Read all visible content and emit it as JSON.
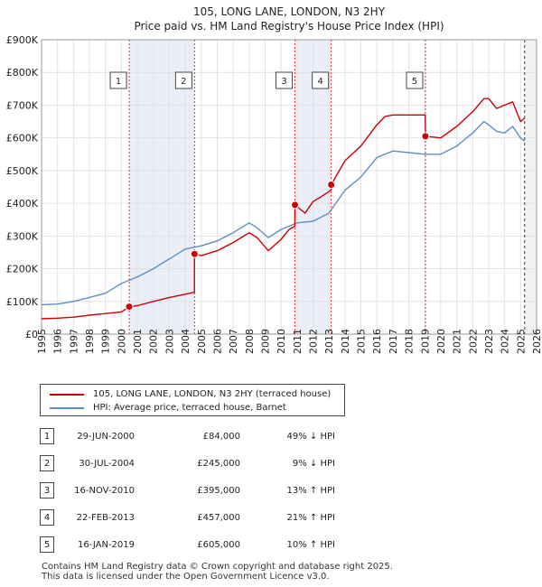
{
  "chart_data": {
    "type": "line",
    "title": "105, LONG LANE, LONDON, N3 2HY",
    "subtitle": "Price paid vs. HM Land Registry's House Price Index (HPI)",
    "xlabel": "",
    "ylabel": "",
    "xlim": [
      1995,
      2026
    ],
    "ylim": [
      0,
      900000
    ],
    "y_ticks": [
      0,
      100000,
      200000,
      300000,
      400000,
      500000,
      600000,
      700000,
      800000,
      900000
    ],
    "y_tick_labels": [
      "£0",
      "£100K",
      "£200K",
      "£300K",
      "£400K",
      "£500K",
      "£600K",
      "£700K",
      "£800K",
      "£900K"
    ],
    "x_ticks": [
      1995,
      1996,
      1997,
      1998,
      1999,
      2000,
      2001,
      2002,
      2003,
      2004,
      2005,
      2006,
      2007,
      2008,
      2009,
      2010,
      2011,
      2012,
      2013,
      2014,
      2015,
      2016,
      2017,
      2018,
      2019,
      2020,
      2021,
      2022,
      2023,
      2024,
      2025,
      2026
    ],
    "x_tick_labels": [
      "1995",
      "1996",
      "1997",
      "1998",
      "1999",
      "2000",
      "2001",
      "2002",
      "2003",
      "2004",
      "2005",
      "2006",
      "2007",
      "2008",
      "2009",
      "2010",
      "2011",
      "2012",
      "2013",
      "2014",
      "2015",
      "2016",
      "2017",
      "2018",
      "2019",
      "2020",
      "2021",
      "2022",
      "2023",
      "2024",
      "2025",
      "2026"
    ],
    "grid": true,
    "legend_position": "below",
    "data_end": 2025.25,
    "shaded_periods": [
      [
        2000.49,
        2004.58
      ],
      [
        2010.87,
        2013.14
      ]
    ],
    "series": [
      {
        "name": "105, LONG LANE, LONDON, N3 2HY (terraced house)",
        "color": "#cc0000",
        "x": [
          1995.0,
          1996.0,
          1997.0,
          1998.0,
          1999.0,
          2000.0,
          2000.49,
          2001.0,
          2002.0,
          2003.0,
          2004.0,
          2004.57,
          2004.58,
          2005.0,
          2006.0,
          2007.0,
          2008.0,
          2008.5,
          2009.2,
          2010.0,
          2010.5,
          2010.86,
          2010.87,
          2011.5,
          2012.0,
          2012.5,
          2013.13,
          2013.14,
          2014.0,
          2015.0,
          2016.0,
          2016.5,
          2017.0,
          2018.0,
          2018.9,
          2019.03,
          2019.04,
          2020.0,
          2021.0,
          2022.0,
          2022.7,
          2023.0,
          2023.5,
          2024.0,
          2024.5,
          2025.0,
          2025.25
        ],
        "values": [
          47000,
          49000,
          52000,
          58000,
          63000,
          68000,
          84000,
          87000,
          100000,
          112000,
          122000,
          128000,
          245000,
          240000,
          255000,
          280000,
          310000,
          295000,
          255000,
          290000,
          320000,
          330000,
          395000,
          370000,
          405000,
          420000,
          440000,
          457000,
          530000,
          575000,
          640000,
          665000,
          670000,
          670000,
          670000,
          670000,
          605000,
          600000,
          635000,
          680000,
          720000,
          720000,
          690000,
          700000,
          710000,
          650000,
          660000
        ]
      },
      {
        "name": "HPI: Average price, terraced house, Barnet",
        "color": "#5b8fc7",
        "x": [
          1995.0,
          1996.0,
          1997.0,
          1998.0,
          1999.0,
          2000.0,
          2001.0,
          2002.0,
          2003.0,
          2004.0,
          2005.0,
          2006.0,
          2007.0,
          2008.0,
          2008.5,
          2009.2,
          2010.0,
          2011.0,
          2012.0,
          2013.0,
          2014.0,
          2015.0,
          2016.0,
          2017.0,
          2018.0,
          2019.0,
          2020.0,
          2021.0,
          2022.0,
          2022.7,
          2023.0,
          2023.5,
          2024.0,
          2024.5,
          2025.0,
          2025.25
        ],
        "values": [
          90000,
          92000,
          100000,
          112000,
          125000,
          155000,
          175000,
          200000,
          230000,
          260000,
          270000,
          285000,
          310000,
          340000,
          325000,
          295000,
          320000,
          340000,
          345000,
          370000,
          440000,
          480000,
          540000,
          560000,
          555000,
          550000,
          550000,
          575000,
          615000,
          650000,
          640000,
          620000,
          615000,
          635000,
          600000,
          590000
        ]
      }
    ],
    "annotations": [
      {
        "label": "1",
        "x": 2000.49,
        "value": 84000
      },
      {
        "label": "2",
        "x": 2004.58,
        "value": 245000
      },
      {
        "label": "3",
        "x": 2010.87,
        "value": 395000
      },
      {
        "label": "4",
        "x": 2013.14,
        "value": 457000
      },
      {
        "label": "5",
        "x": 2019.04,
        "value": 605000
      }
    ]
  },
  "legend": {
    "property_label": "105, LONG LANE, LONDON, N3 2HY (terraced house)",
    "hpi_label": "HPI: Average price, terraced house, Barnet",
    "property_color": "#cc0000",
    "hpi_color": "#5b8fc7"
  },
  "sales": [
    {
      "num": "1",
      "date": "29-JUN-2000",
      "price": "£84,000",
      "hpi": "49% ↓ HPI"
    },
    {
      "num": "2",
      "date": "30-JUL-2004",
      "price": "£245,000",
      "hpi": "9% ↓ HPI"
    },
    {
      "num": "3",
      "date": "16-NOV-2010",
      "price": "£395,000",
      "hpi": "13% ↑ HPI"
    },
    {
      "num": "4",
      "date": "22-FEB-2013",
      "price": "£457,000",
      "hpi": "21% ↑ HPI"
    },
    {
      "num": "5",
      "date": "16-JAN-2019",
      "price": "£605,000",
      "hpi": "10% ↑ HPI"
    }
  ],
  "footer": {
    "line1": "Contains HM Land Registry data © Crown copyright and database right 2025.",
    "line2": "This data is licensed under the Open Government Licence v3.0."
  }
}
